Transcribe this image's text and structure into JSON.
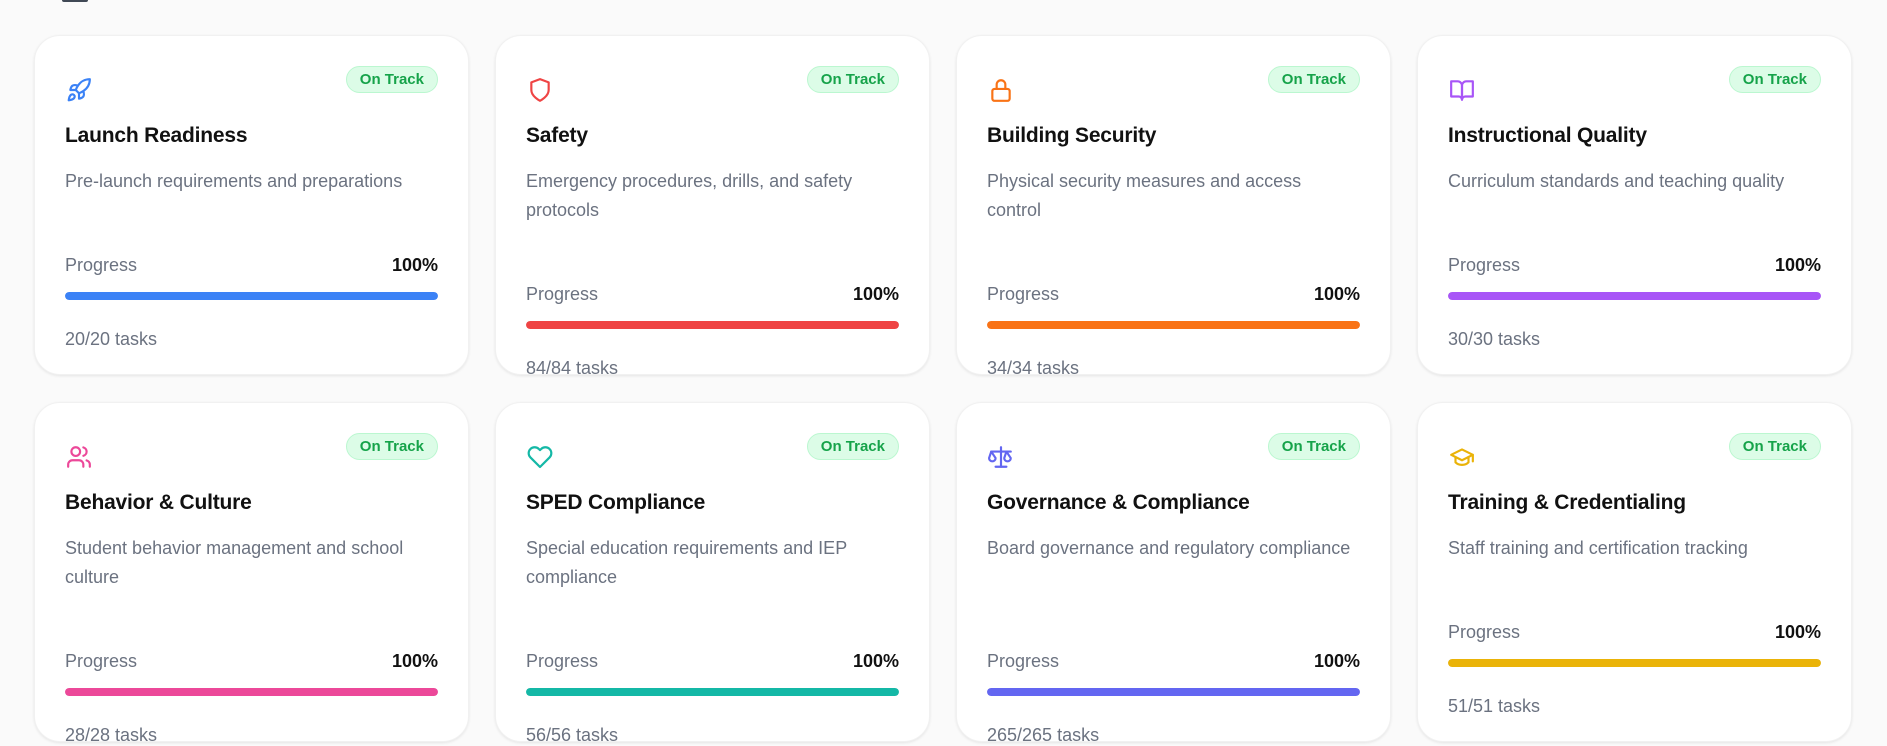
{
  "cards": [
    {
      "title": "Launch Readiness",
      "description": "Pre-launch requirements and preparations",
      "status": "On Track",
      "progress_label": "Progress",
      "progress_text": "100%",
      "progress": 1.0,
      "tasks": "20/20 tasks",
      "color": "#3b82f6",
      "icon": "rocket-icon"
    },
    {
      "title": "Safety",
      "description": "Emergency procedures, drills, and safety protocols",
      "status": "On Track",
      "progress_label": "Progress",
      "progress_text": "100%",
      "progress": 1.0,
      "tasks": "84/84 tasks",
      "color": "#ef4444",
      "icon": "shield-icon"
    },
    {
      "title": "Building Security",
      "description": "Physical security measures and access control",
      "status": "On Track",
      "progress_label": "Progress",
      "progress_text": "100%",
      "progress": 1.0,
      "tasks": "34/34 tasks",
      "color": "#f97316",
      "icon": "lock-icon"
    },
    {
      "title": "Instructional Quality",
      "description": "Curriculum standards and teaching quality",
      "status": "On Track",
      "progress_label": "Progress",
      "progress_text": "100%",
      "progress": 1.0,
      "tasks": "30/30 tasks",
      "color": "#a855f7",
      "icon": "book-icon"
    },
    {
      "title": "Behavior & Culture",
      "description": "Student behavior management and school culture",
      "status": "On Track",
      "progress_label": "Progress",
      "progress_text": "100%",
      "progress": 1.0,
      "tasks": "28/28 tasks",
      "color": "#ec4899",
      "icon": "users-icon"
    },
    {
      "title": "SPED Compliance",
      "description": "Special education requirements and IEP compliance",
      "status": "On Track",
      "progress_label": "Progress",
      "progress_text": "100%",
      "progress": 1.0,
      "tasks": "56/56 tasks",
      "color": "#14b8a6",
      "icon": "heart-icon"
    },
    {
      "title": "Governance & Compliance",
      "description": "Board governance and regulatory compliance",
      "status": "On Track",
      "progress_label": "Progress",
      "progress_text": "100%",
      "progress": 1.0,
      "tasks": "265/265 tasks",
      "color": "#6366f1",
      "icon": "scale-icon"
    },
    {
      "title": "Training & Credentialing",
      "description": "Staff training and certification tracking",
      "status": "On Track",
      "progress_label": "Progress",
      "progress_text": "100%",
      "progress": 1.0,
      "tasks": "51/51 tasks",
      "color": "#eab308",
      "icon": "graduation-cap-icon"
    }
  ]
}
